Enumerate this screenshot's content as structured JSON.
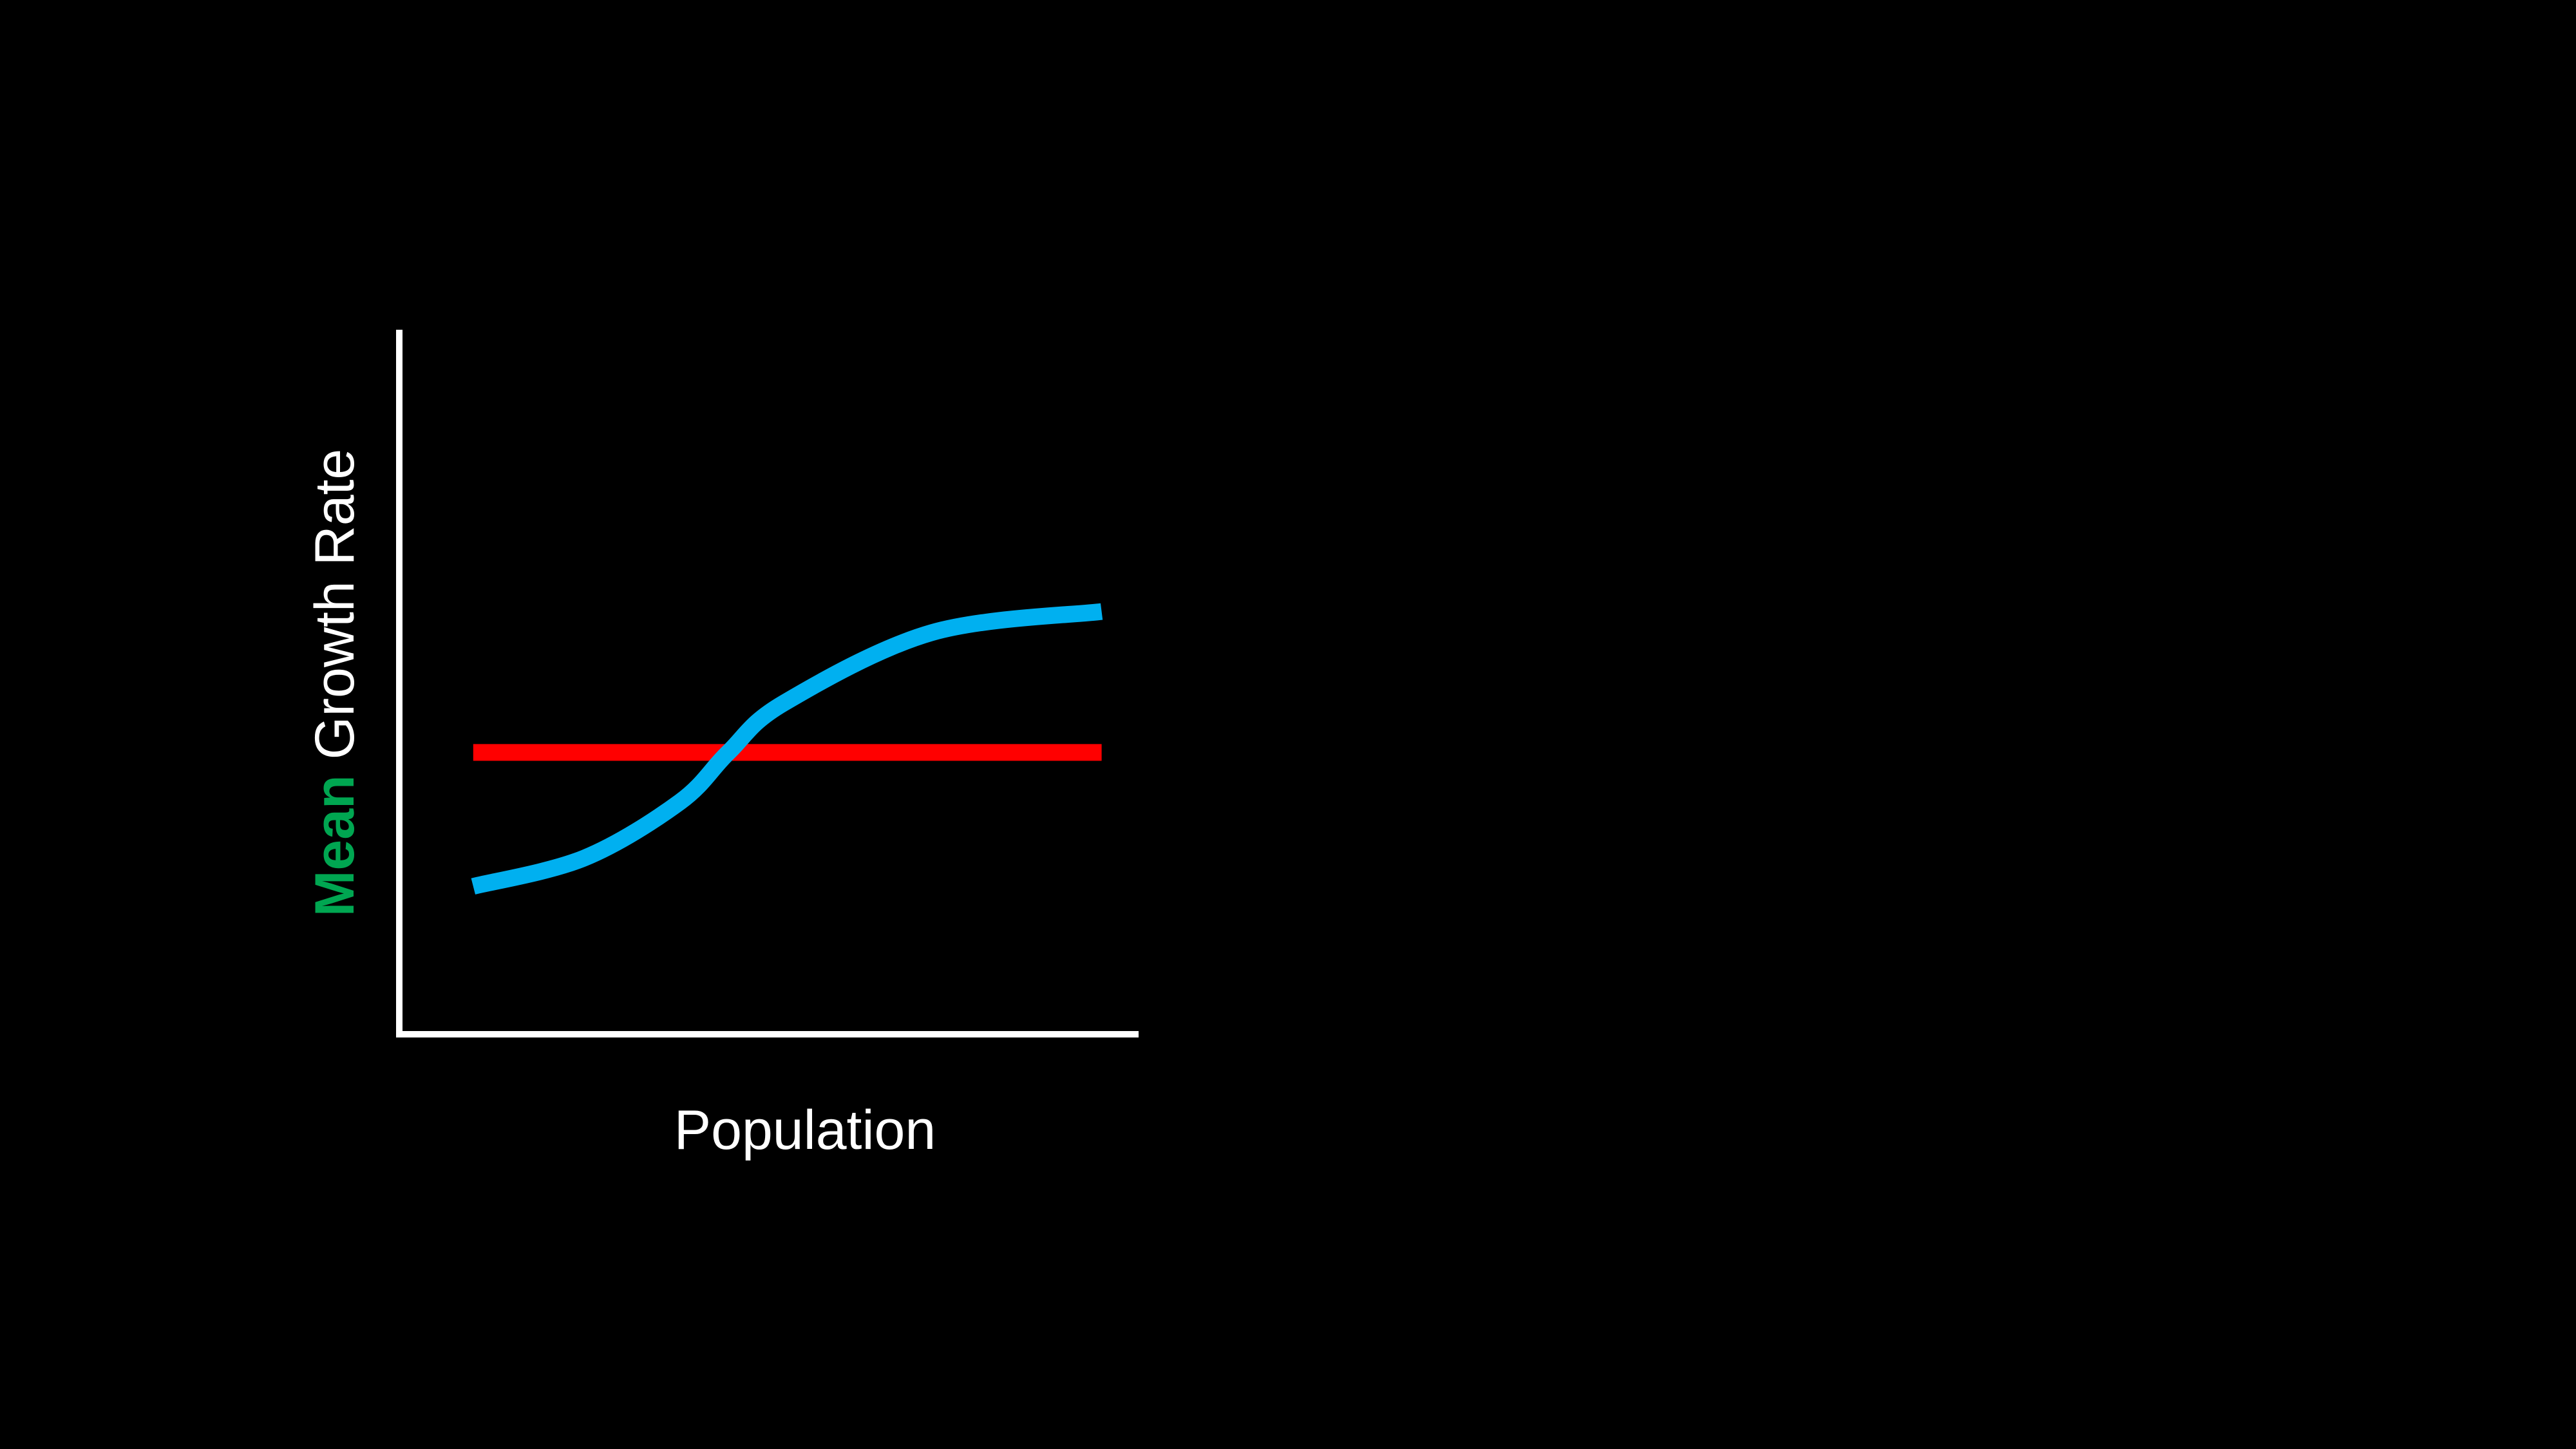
{
  "colors": {
    "background": "#000000",
    "axis": "#FFFFFF",
    "text": "#FFFFFF",
    "emphasis": "#00A651",
    "series_flat": "#FF0000",
    "series_curve": "#00B0F0"
  },
  "chart_data": {
    "type": "line",
    "title": "",
    "xlabel": "Population",
    "ylabel": {
      "emphasis": "Mean",
      "rest": "Growth Rate"
    },
    "xlim": [
      0,
      1
    ],
    "ylim": [
      0,
      1
    ],
    "grid": false,
    "legend": "none",
    "ticks": "none",
    "series": [
      {
        "color": "#FF0000",
        "x": [
          0.1,
          0.95
        ],
        "y": [
          0.4,
          0.4
        ]
      },
      {
        "color": "#00B0F0",
        "x": [
          0.1,
          0.25,
          0.38,
          0.445,
          0.52,
          0.72,
          0.95
        ],
        "y": [
          0.21,
          0.25,
          0.33,
          0.4,
          0.47,
          0.57,
          0.6
        ]
      }
    ]
  }
}
